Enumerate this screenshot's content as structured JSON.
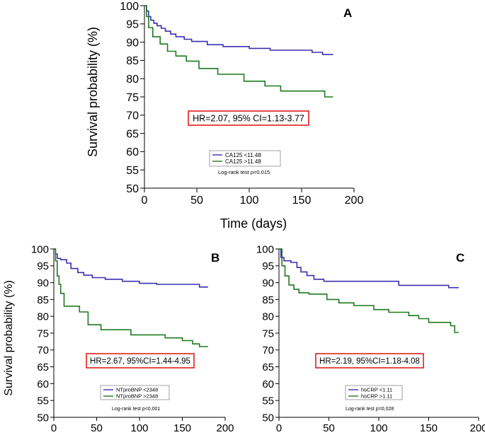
{
  "figure": {
    "xlabel": "Time (days)",
    "ylabel": "Survival probability (%)"
  },
  "colors": {
    "group_low": "#3b2fb0",
    "group_high": "#1f7a1f",
    "hr_border": "#e0201b"
  },
  "chart_data": [
    {
      "panel": "A",
      "type": "line",
      "step": true,
      "xlim": [
        0,
        200
      ],
      "ylim": [
        50,
        100
      ],
      "xticks": [
        0,
        50,
        100,
        150,
        200
      ],
      "yticks": [
        50,
        55,
        60,
        65,
        70,
        75,
        80,
        85,
        90,
        95,
        100
      ],
      "hr_text": "HR=2.07, 95% CI=1.13-3.77",
      "logrank": "Log-rank test  p=0.015",
      "series": [
        {
          "name": "CA125 <11.48",
          "color": "#3b2fb0",
          "x": [
            0,
            2,
            4,
            6,
            9,
            12,
            16,
            20,
            25,
            30,
            38,
            45,
            60,
            75,
            100,
            120,
            160,
            170,
            180
          ],
          "y": [
            100,
            98.5,
            97,
            96,
            95.2,
            94.5,
            93.8,
            93,
            92.2,
            91.5,
            90.8,
            90.2,
            89.3,
            88.8,
            88.3,
            87.8,
            87.2,
            86.6,
            86.6
          ]
        },
        {
          "name": "CA125 >11.48",
          "color": "#1f7a1f",
          "x": [
            0,
            2,
            4,
            8,
            15,
            22,
            30,
            40,
            52,
            70,
            95,
            115,
            130,
            168,
            172,
            180
          ],
          "y": [
            100,
            97,
            94,
            91.5,
            89.5,
            87.5,
            86.2,
            84.8,
            82.8,
            81.2,
            79.3,
            78,
            76.6,
            76.6,
            75,
            75
          ]
        }
      ]
    },
    {
      "panel": "B",
      "type": "line",
      "step": true,
      "xlim": [
        0,
        200
      ],
      "ylim": [
        50,
        100
      ],
      "xticks": [
        0,
        50,
        100,
        150,
        200
      ],
      "yticks": [
        50,
        55,
        60,
        65,
        70,
        75,
        80,
        85,
        90,
        95,
        100
      ],
      "hr_text": "HR=2.67, 95%CI=1.44-4.95",
      "logrank": "Log-rank test  p<0,001",
      "series": [
        {
          "name": "NTproBNP <2348",
          "color": "#3b2fb0",
          "x": [
            0,
            2,
            4,
            8,
            15,
            20,
            28,
            35,
            45,
            60,
            80,
            100,
            120,
            140,
            170,
            180
          ],
          "y": [
            100,
            98.5,
            97.2,
            96.8,
            95.8,
            94.2,
            93,
            92.2,
            91.5,
            91,
            90.4,
            89.8,
            89.5,
            89.5,
            88.7,
            88.7
          ]
        },
        {
          "name": "NTproBNP >2348",
          "color": "#1f7a1f",
          "x": [
            0,
            2,
            4,
            6,
            8,
            12,
            30,
            40,
            55,
            65,
            90,
            100,
            130,
            150,
            162,
            170,
            180
          ],
          "y": [
            100,
            96.5,
            92,
            89.5,
            86.8,
            83,
            81.3,
            77.5,
            76,
            76,
            74.5,
            74.5,
            73.6,
            72.8,
            71.8,
            71,
            71
          ]
        }
      ]
    },
    {
      "panel": "C",
      "type": "line",
      "step": true,
      "xlim": [
        0,
        200
      ],
      "ylim": [
        50,
        100
      ],
      "xticks": [
        0,
        50,
        100,
        150,
        200
      ],
      "yticks": [
        50,
        55,
        60,
        65,
        70,
        75,
        80,
        85,
        90,
        95,
        100
      ],
      "hr_text": "HR=2.19, 95%CI=1.18-4.08",
      "logrank": "Log-rank test  p=0,028",
      "series": [
        {
          "name": "hsCRP <1.11",
          "color": "#3b2fb0",
          "x": [
            0,
            2,
            5,
            12,
            18,
            22,
            28,
            35,
            45,
            100,
            120,
            170,
            180
          ],
          "y": [
            100,
            97.5,
            96.5,
            96,
            94.5,
            93.2,
            92.1,
            91,
            90.4,
            90.4,
            89.2,
            88.5,
            88.5
          ]
        },
        {
          "name": "hsCRP >1.11",
          "color": "#1f7a1f",
          "x": [
            0,
            3,
            6,
            10,
            15,
            20,
            30,
            48,
            60,
            75,
            95,
            110,
            130,
            140,
            150,
            172,
            176,
            180
          ],
          "y": [
            100,
            95,
            92,
            89.3,
            88,
            87,
            86.6,
            85,
            84,
            83.2,
            82,
            81.2,
            80.2,
            79.3,
            78.2,
            77.2,
            75.2,
            75.2
          ]
        }
      ]
    }
  ]
}
